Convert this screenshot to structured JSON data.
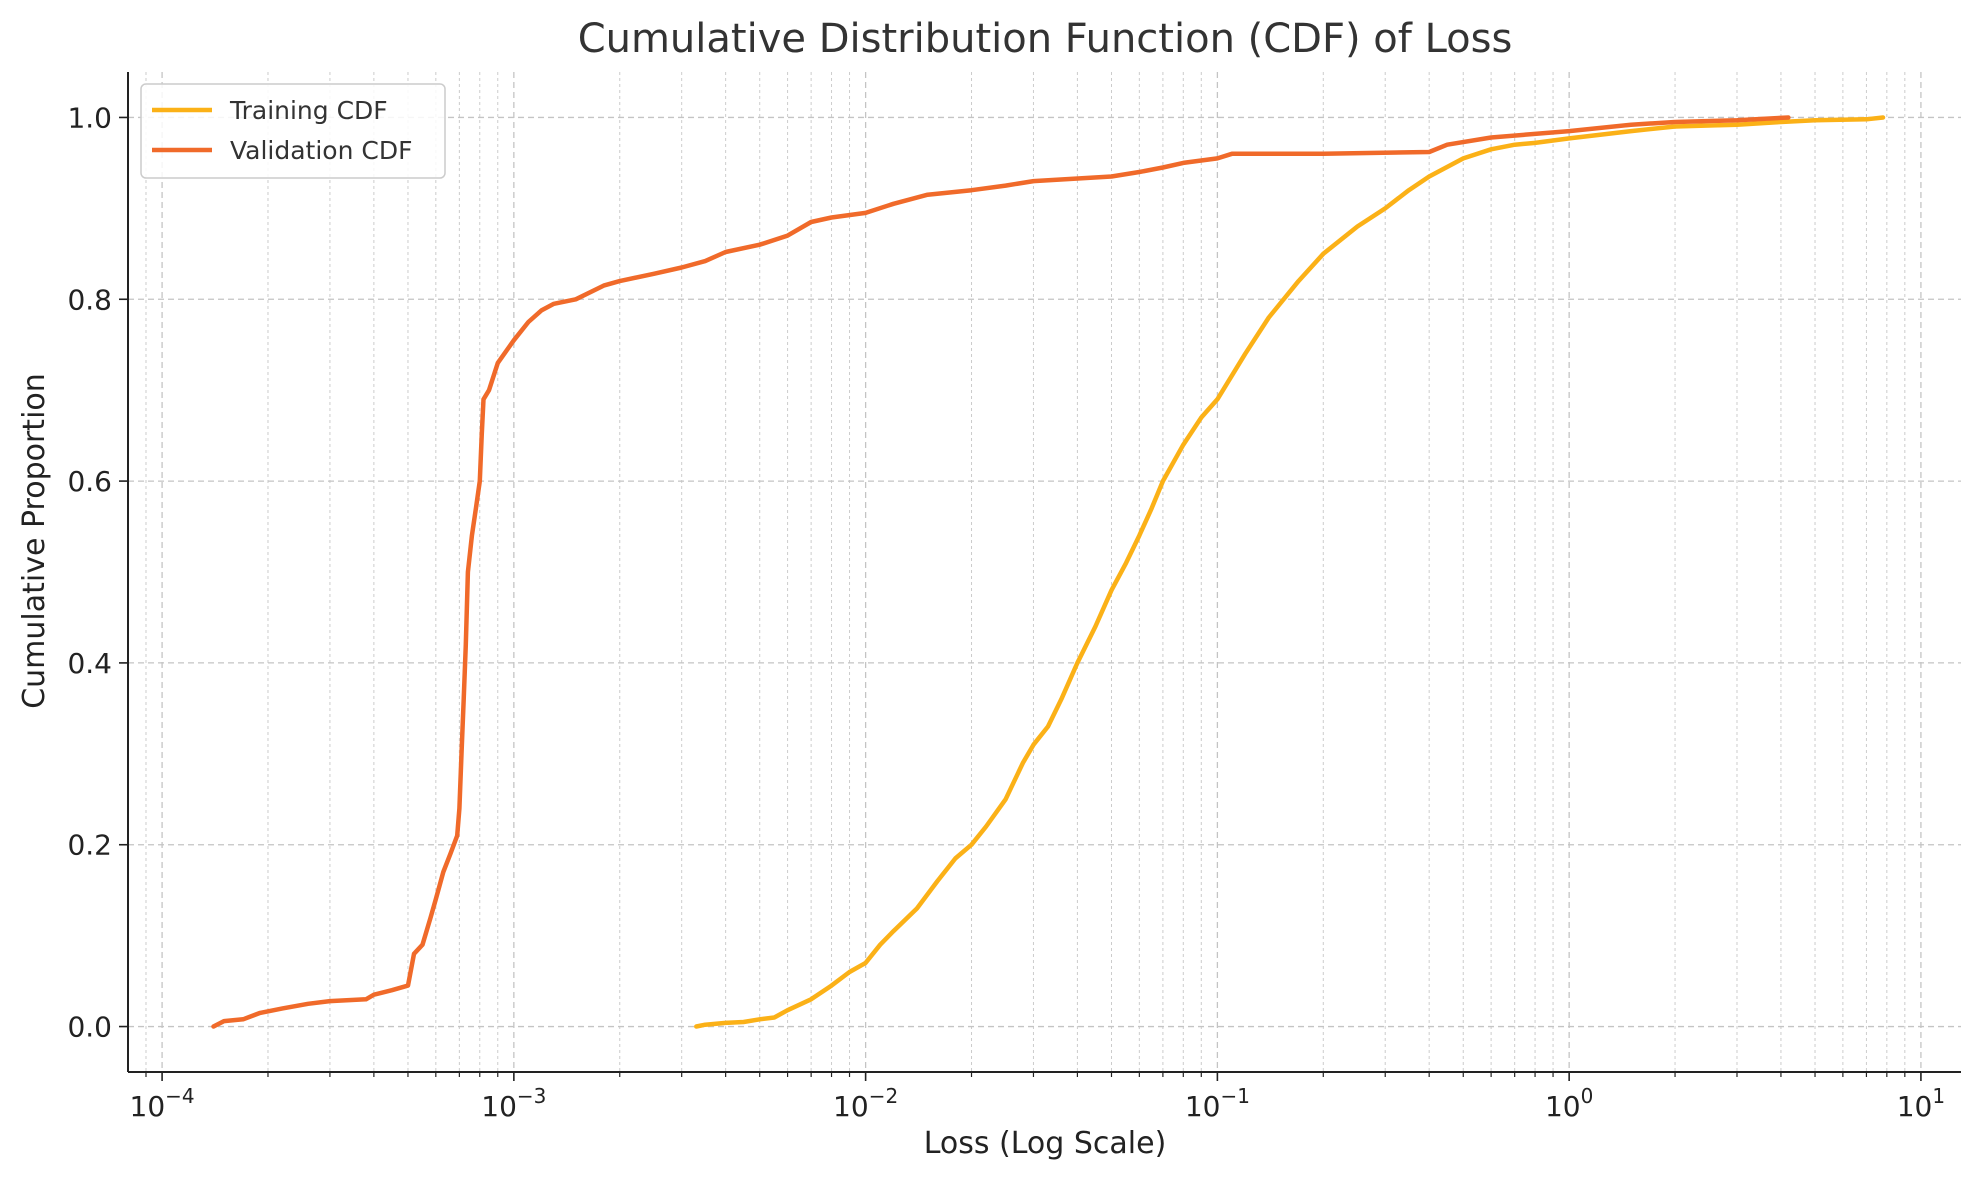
{
  "chart_data": {
    "type": "line",
    "title": "Cumulative Distribution Function (CDF) of Loss",
    "xlabel": "Loss (Log Scale)",
    "ylabel": "Cumulative Proportion",
    "xscale": "log",
    "xlim": [
      8e-05,
      13
    ],
    "ylim": [
      -0.05,
      1.05
    ],
    "x_ticks": [
      {
        "value": 0.0001,
        "base": "10",
        "exp": "−4"
      },
      {
        "value": 0.001,
        "base": "10",
        "exp": "−3"
      },
      {
        "value": 0.01,
        "base": "10",
        "exp": "−2"
      },
      {
        "value": 0.1,
        "base": "10",
        "exp": "−1"
      },
      {
        "value": 1,
        "base": "10",
        "exp": "0"
      },
      {
        "value": 10,
        "base": "10",
        "exp": "1"
      }
    ],
    "y_ticks": [
      {
        "value": 0.0,
        "label": "0.0"
      },
      {
        "value": 0.2,
        "label": "0.2"
      },
      {
        "value": 0.4,
        "label": "0.4"
      },
      {
        "value": 0.6,
        "label": "0.6"
      },
      {
        "value": 0.8,
        "label": "0.8"
      },
      {
        "value": 1.0,
        "label": "1.0"
      }
    ],
    "grid": true,
    "legend_position": "top-left",
    "series": [
      {
        "name": "Training CDF",
        "color": "#FBB117",
        "points": [
          [
            0.0033,
            0.0
          ],
          [
            0.0035,
            0.002
          ],
          [
            0.004,
            0.004
          ],
          [
            0.0045,
            0.005
          ],
          [
            0.005,
            0.008
          ],
          [
            0.0055,
            0.01
          ],
          [
            0.006,
            0.018
          ],
          [
            0.007,
            0.03
          ],
          [
            0.008,
            0.045
          ],
          [
            0.009,
            0.06
          ],
          [
            0.01,
            0.07
          ],
          [
            0.011,
            0.09
          ],
          [
            0.012,
            0.105
          ],
          [
            0.014,
            0.13
          ],
          [
            0.016,
            0.16
          ],
          [
            0.018,
            0.185
          ],
          [
            0.02,
            0.2
          ],
          [
            0.022,
            0.22
          ],
          [
            0.025,
            0.25
          ],
          [
            0.028,
            0.29
          ],
          [
            0.03,
            0.31
          ],
          [
            0.033,
            0.33
          ],
          [
            0.036,
            0.36
          ],
          [
            0.04,
            0.4
          ],
          [
            0.045,
            0.44
          ],
          [
            0.05,
            0.48
          ],
          [
            0.055,
            0.51
          ],
          [
            0.06,
            0.54
          ],
          [
            0.065,
            0.57
          ],
          [
            0.07,
            0.6
          ],
          [
            0.08,
            0.64
          ],
          [
            0.09,
            0.67
          ],
          [
            0.1,
            0.69
          ],
          [
            0.12,
            0.74
          ],
          [
            0.14,
            0.78
          ],
          [
            0.17,
            0.82
          ],
          [
            0.2,
            0.85
          ],
          [
            0.25,
            0.88
          ],
          [
            0.3,
            0.9
          ],
          [
            0.35,
            0.92
          ],
          [
            0.4,
            0.935
          ],
          [
            0.5,
            0.955
          ],
          [
            0.6,
            0.965
          ],
          [
            0.7,
            0.97
          ],
          [
            0.8,
            0.972
          ],
          [
            1.0,
            0.977
          ],
          [
            1.5,
            0.985
          ],
          [
            2.0,
            0.99
          ],
          [
            3.0,
            0.992
          ],
          [
            4.0,
            0.995
          ],
          [
            5.0,
            0.997
          ],
          [
            7.0,
            0.998
          ],
          [
            7.8,
            1.0
          ]
        ]
      },
      {
        "name": "Validation CDF",
        "color": "#F06A2A",
        "points": [
          [
            0.00014,
            0.0
          ],
          [
            0.00015,
            0.006
          ],
          [
            0.00017,
            0.008
          ],
          [
            0.00019,
            0.015
          ],
          [
            0.00022,
            0.02
          ],
          [
            0.00026,
            0.025
          ],
          [
            0.0003,
            0.028
          ],
          [
            0.00038,
            0.03
          ],
          [
            0.0004,
            0.035
          ],
          [
            0.00045,
            0.04
          ],
          [
            0.0005,
            0.045
          ],
          [
            0.00052,
            0.08
          ],
          [
            0.00055,
            0.09
          ],
          [
            0.00058,
            0.12
          ],
          [
            0.0006,
            0.14
          ],
          [
            0.00063,
            0.17
          ],
          [
            0.00066,
            0.19
          ],
          [
            0.00069,
            0.21
          ],
          [
            0.0007,
            0.24
          ],
          [
            0.00071,
            0.3
          ],
          [
            0.00072,
            0.36
          ],
          [
            0.00073,
            0.42
          ],
          [
            0.00074,
            0.5
          ],
          [
            0.00076,
            0.54
          ],
          [
            0.00078,
            0.57
          ],
          [
            0.0008,
            0.6
          ],
          [
            0.00081,
            0.65
          ],
          [
            0.00082,
            0.69
          ],
          [
            0.00085,
            0.7
          ],
          [
            0.0009,
            0.73
          ],
          [
            0.001,
            0.755
          ],
          [
            0.0011,
            0.775
          ],
          [
            0.0012,
            0.788
          ],
          [
            0.0013,
            0.795
          ],
          [
            0.0015,
            0.8
          ],
          [
            0.0018,
            0.815
          ],
          [
            0.002,
            0.82
          ],
          [
            0.0025,
            0.828
          ],
          [
            0.003,
            0.835
          ],
          [
            0.0035,
            0.842
          ],
          [
            0.004,
            0.852
          ],
          [
            0.005,
            0.86
          ],
          [
            0.006,
            0.87
          ],
          [
            0.007,
            0.885
          ],
          [
            0.008,
            0.89
          ],
          [
            0.01,
            0.895
          ],
          [
            0.012,
            0.905
          ],
          [
            0.015,
            0.915
          ],
          [
            0.02,
            0.92
          ],
          [
            0.025,
            0.925
          ],
          [
            0.03,
            0.93
          ],
          [
            0.05,
            0.935
          ],
          [
            0.06,
            0.94
          ],
          [
            0.07,
            0.945
          ],
          [
            0.08,
            0.95
          ],
          [
            0.1,
            0.955
          ],
          [
            0.11,
            0.96
          ],
          [
            0.2,
            0.96
          ],
          [
            0.4,
            0.962
          ],
          [
            0.45,
            0.97
          ],
          [
            0.6,
            0.978
          ],
          [
            1.0,
            0.985
          ],
          [
            1.5,
            0.992
          ],
          [
            2.0,
            0.995
          ],
          [
            3.0,
            0.997
          ],
          [
            4.2,
            1.0
          ]
        ]
      }
    ]
  }
}
